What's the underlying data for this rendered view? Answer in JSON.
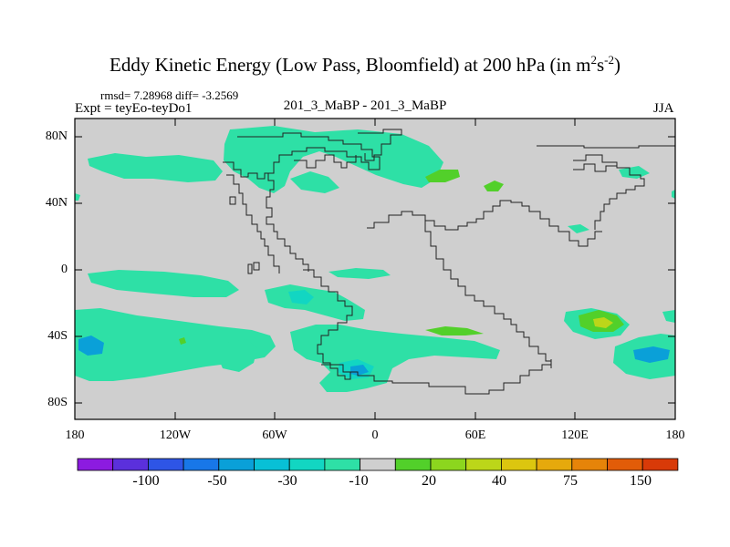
{
  "title": {
    "main": "Eddy Kinetic Energy (Low Pass, Bloomfield) at 200 hPa (in m",
    "exp1": "2",
    "mid": "s",
    "exp2": "-2",
    "close": ")"
  },
  "stats": "rmsd= 7.28968  diff= -3.2569",
  "expt": "Expt = teyEo-teyDo1",
  "comparison": "201_3_MaBP - 201_3_MaBP",
  "season": "JJA",
  "y_axis": [
    "80N",
    "40N",
    "0",
    "40S",
    "80S"
  ],
  "x_axis": [
    "180",
    "120W",
    "60W",
    "0",
    "60E",
    "120E",
    "180"
  ],
  "colorbar": {
    "colors": [
      "#8c1be0",
      "#5b30dc",
      "#2e55e6",
      "#1877e8",
      "#0aa0d8",
      "#08c0d6",
      "#12d6c2",
      "#2ee0a6",
      "#cfcfcf",
      "#52d02a",
      "#8cd61e",
      "#bcd619",
      "#dcc60f",
      "#e6a90c",
      "#e68409",
      "#e25c08",
      "#d83a08"
    ],
    "labels": [
      "-100",
      "-50",
      "-30",
      "-10",
      "20",
      "40",
      "75",
      "150"
    ]
  },
  "legend_colors": {
    "teal": "#2ee0a6",
    "cyan": "#12d6c2",
    "blue": "#0aa0d8",
    "green": "#52d02a",
    "lime": "#8cd61e",
    "yellow": "#bcd619",
    "land_background": "#cfcfcf"
  }
}
